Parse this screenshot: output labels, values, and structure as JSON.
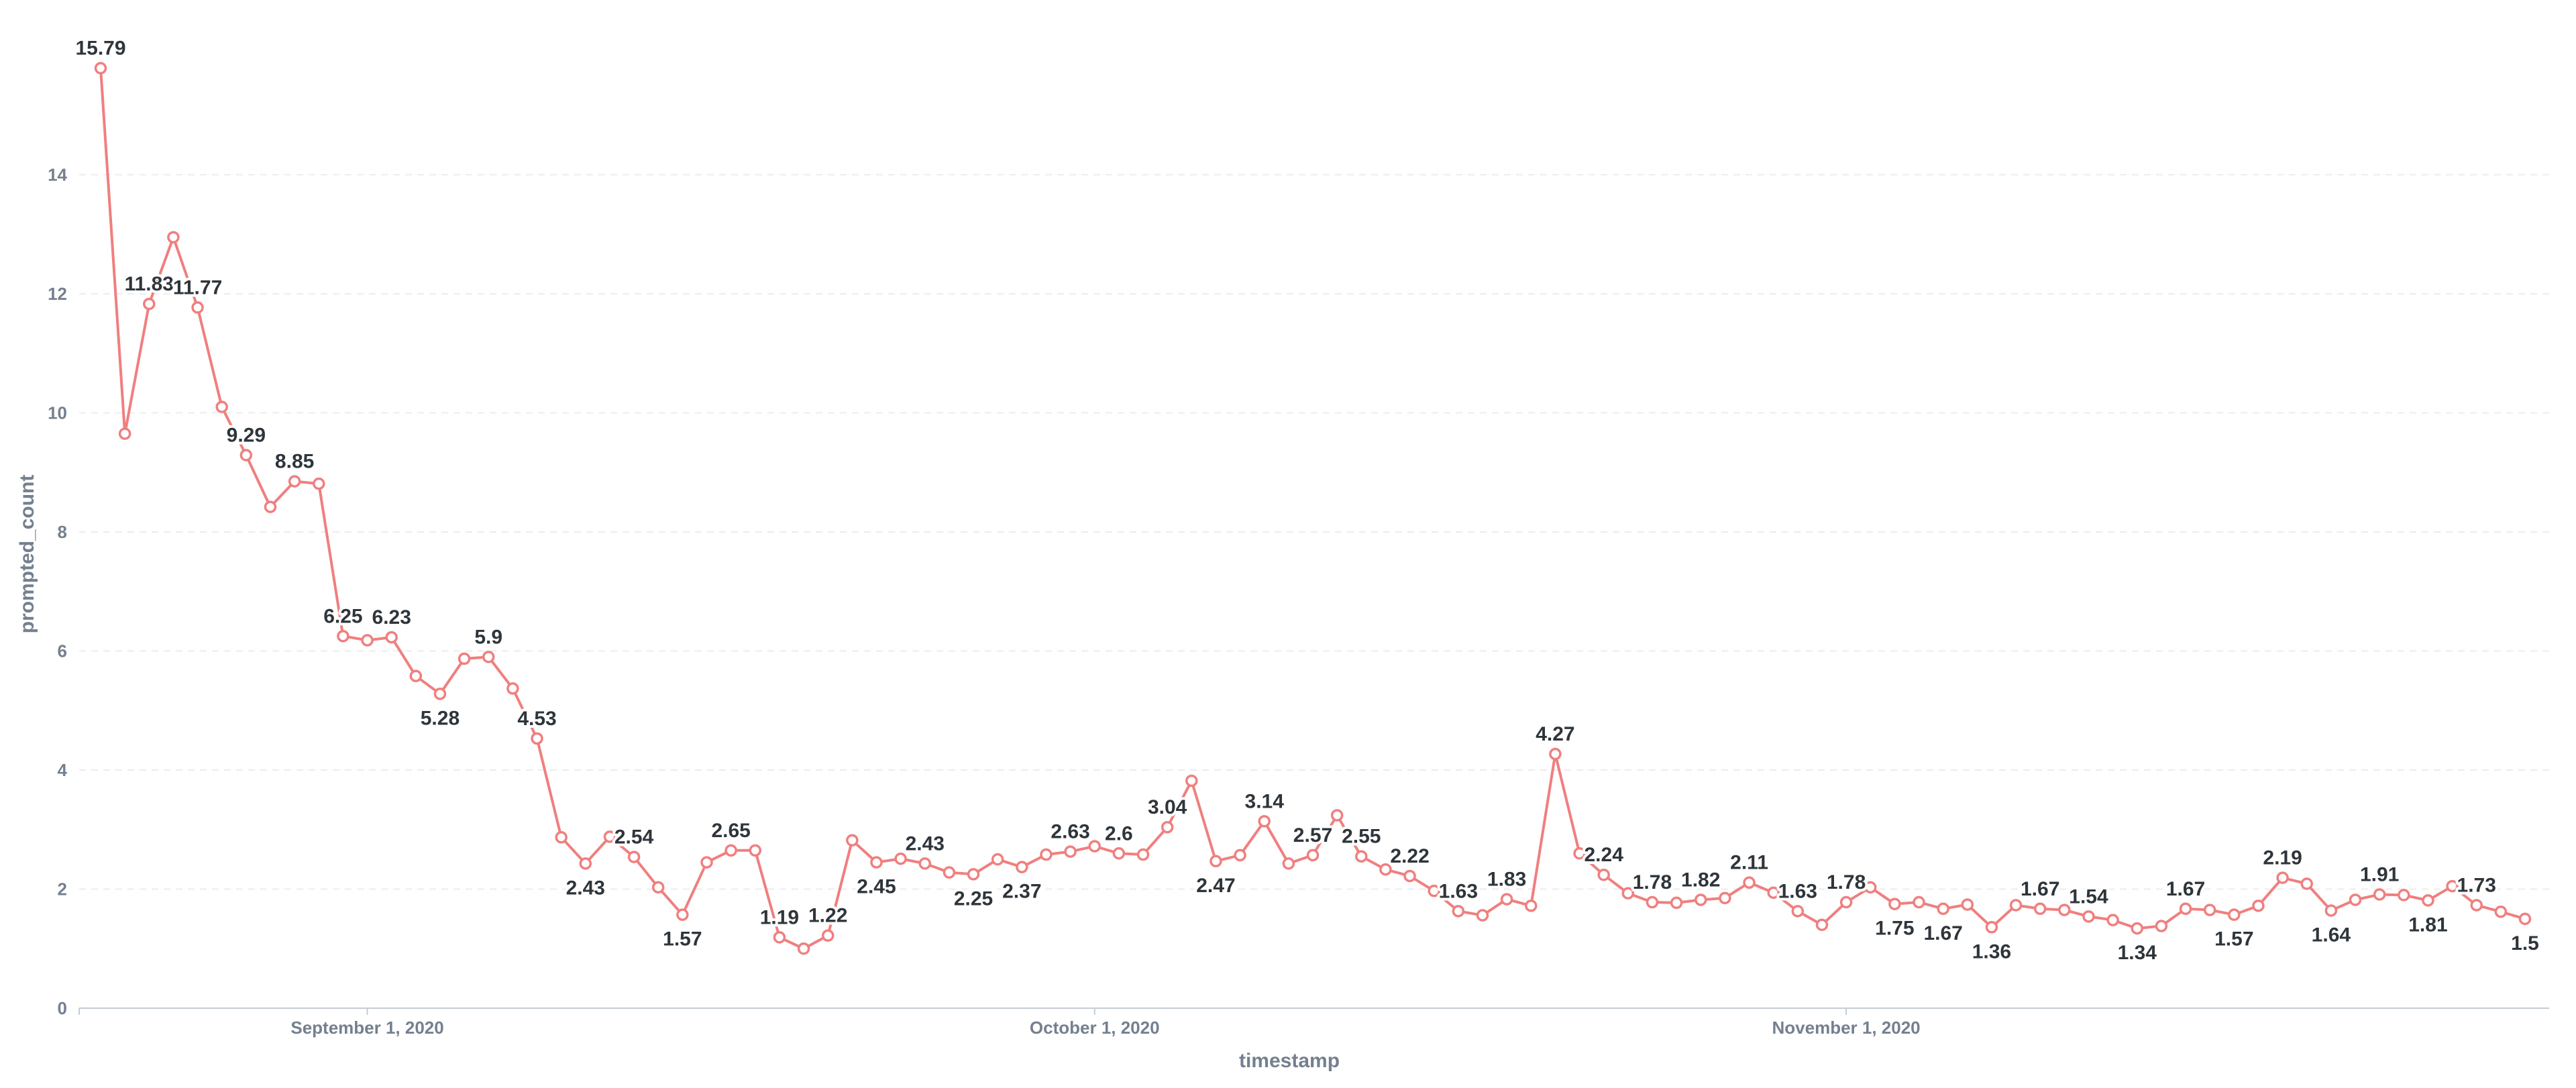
{
  "chart_data": {
    "type": "line",
    "xlabel": "timestamp",
    "ylabel": "prompted_count",
    "x_tick_labels": [
      "September 1, 2020",
      "October 1, 2020",
      "November 1, 2020"
    ],
    "y_ticks": [
      0,
      2,
      4,
      6,
      8,
      10,
      12,
      14
    ],
    "ylim": [
      0,
      16
    ],
    "grid": true,
    "series_color": "#f07f7f",
    "label_text_color": "#2e353b",
    "axis_text_color": "#74808f",
    "x_start": "2020-08-21",
    "series": [
      {
        "values": [
          15.79,
          9.65,
          11.83,
          12.95,
          11.77,
          10.1,
          9.29,
          8.42,
          8.85,
          8.81,
          6.25,
          6.18,
          6.23,
          5.58,
          5.28,
          5.87,
          5.9,
          5.37,
          4.53,
          2.87,
          2.43,
          2.88,
          2.54,
          2.03,
          1.57,
          2.45,
          2.65,
          2.65,
          1.19,
          1.0,
          1.22,
          2.82,
          2.45,
          2.51,
          2.43,
          2.28,
          2.25,
          2.5,
          2.37,
          2.58,
          2.63,
          2.72,
          2.6,
          2.58,
          3.04,
          3.82,
          2.47,
          2.57,
          3.14,
          2.43,
          2.57,
          3.24,
          2.55,
          2.33,
          2.22,
          1.97,
          1.63,
          1.56,
          1.83,
          1.72,
          4.27,
          2.6,
          2.24,
          1.93,
          1.78,
          1.77,
          1.82,
          1.85,
          2.11,
          1.94,
          1.63,
          1.4,
          1.78,
          2.03,
          1.75,
          1.78,
          1.67,
          1.74,
          1.36,
          1.73,
          1.67,
          1.65,
          1.54,
          1.48,
          1.34,
          1.38,
          1.67,
          1.65,
          1.57,
          1.72,
          2.19,
          2.09,
          1.64,
          1.82,
          1.91,
          1.9,
          1.81,
          2.05,
          1.73,
          1.62,
          1.5
        ]
      }
    ],
    "data_labels": [
      {
        "index": 0,
        "text": "15.79",
        "pos": "above"
      },
      {
        "index": 2,
        "text": "11.83",
        "pos": "above"
      },
      {
        "index": 4,
        "text": "11.77",
        "pos": "above"
      },
      {
        "index": 6,
        "text": "9.29",
        "pos": "above"
      },
      {
        "index": 8,
        "text": "8.85",
        "pos": "above"
      },
      {
        "index": 10,
        "text": "6.25",
        "pos": "above"
      },
      {
        "index": 12,
        "text": "6.23",
        "pos": "above"
      },
      {
        "index": 14,
        "text": "5.28",
        "pos": "below"
      },
      {
        "index": 16,
        "text": "5.9",
        "pos": "above"
      },
      {
        "index": 18,
        "text": "4.53",
        "pos": "above"
      },
      {
        "index": 20,
        "text": "2.43",
        "pos": "below"
      },
      {
        "index": 22,
        "text": "2.54",
        "pos": "above"
      },
      {
        "index": 24,
        "text": "1.57",
        "pos": "below"
      },
      {
        "index": 26,
        "text": "2.65",
        "pos": "above"
      },
      {
        "index": 28,
        "text": "1.19",
        "pos": "above"
      },
      {
        "index": 30,
        "text": "1.22",
        "pos": "above"
      },
      {
        "index": 32,
        "text": "2.45",
        "pos": "below"
      },
      {
        "index": 34,
        "text": "2.43",
        "pos": "above"
      },
      {
        "index": 36,
        "text": "2.25",
        "pos": "below"
      },
      {
        "index": 38,
        "text": "2.37",
        "pos": "below"
      },
      {
        "index": 40,
        "text": "2.63",
        "pos": "above"
      },
      {
        "index": 42,
        "text": "2.6",
        "pos": "above"
      },
      {
        "index": 44,
        "text": "3.04",
        "pos": "above"
      },
      {
        "index": 46,
        "text": "2.47",
        "pos": "below"
      },
      {
        "index": 48,
        "text": "3.14",
        "pos": "above"
      },
      {
        "index": 50,
        "text": "2.57",
        "pos": "above"
      },
      {
        "index": 52,
        "text": "2.55",
        "pos": "above"
      },
      {
        "index": 54,
        "text": "2.22",
        "pos": "above"
      },
      {
        "index": 56,
        "text": "1.63",
        "pos": "above"
      },
      {
        "index": 58,
        "text": "1.83",
        "pos": "above"
      },
      {
        "index": 60,
        "text": "4.27",
        "pos": "above"
      },
      {
        "index": 62,
        "text": "2.24",
        "pos": "above"
      },
      {
        "index": 64,
        "text": "1.78",
        "pos": "above"
      },
      {
        "index": 66,
        "text": "1.82",
        "pos": "above"
      },
      {
        "index": 68,
        "text": "2.11",
        "pos": "above"
      },
      {
        "index": 70,
        "text": "1.63",
        "pos": "above"
      },
      {
        "index": 72,
        "text": "1.78",
        "pos": "above"
      },
      {
        "index": 74,
        "text": "1.75",
        "pos": "below"
      },
      {
        "index": 76,
        "text": "1.67",
        "pos": "below"
      },
      {
        "index": 78,
        "text": "1.36",
        "pos": "below"
      },
      {
        "index": 80,
        "text": "1.67",
        "pos": "above"
      },
      {
        "index": 82,
        "text": "1.54",
        "pos": "above"
      },
      {
        "index": 84,
        "text": "1.34",
        "pos": "below"
      },
      {
        "index": 86,
        "text": "1.67",
        "pos": "above"
      },
      {
        "index": 88,
        "text": "1.57",
        "pos": "below"
      },
      {
        "index": 90,
        "text": "2.19",
        "pos": "above"
      },
      {
        "index": 92,
        "text": "1.64",
        "pos": "below"
      },
      {
        "index": 94,
        "text": "1.91",
        "pos": "above"
      },
      {
        "index": 96,
        "text": "1.81",
        "pos": "below"
      },
      {
        "index": 98,
        "text": "1.73",
        "pos": "above"
      },
      {
        "index": 100,
        "text": "1.5",
        "pos": "below"
      }
    ]
  }
}
